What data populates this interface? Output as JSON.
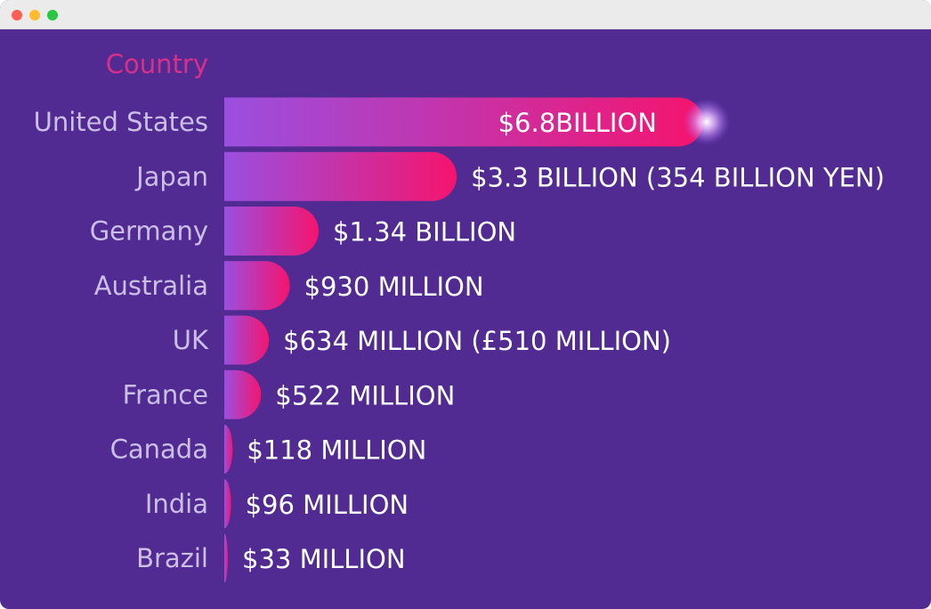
{
  "window": {
    "buttons": [
      {
        "name": "close",
        "color": "#ff5f57"
      },
      {
        "name": "minimize",
        "color": "#febc2e"
      },
      {
        "name": "zoom",
        "color": "#28c840"
      }
    ]
  },
  "colors": {
    "background": "#512b92",
    "header": "#d8308a",
    "category_label": "#cbbfe6",
    "value_label": "#ffffff",
    "bar_start": "#9a4fe0",
    "bar_end": "#f5146e",
    "glow": "#ffffff"
  },
  "chart_data": {
    "type": "bar",
    "orientation": "horizontal",
    "title": "",
    "category_header": "Country",
    "categories": [
      "United States",
      "Japan",
      "Germany",
      "Australia",
      "UK",
      "France",
      "Canada",
      "India",
      "Brazil"
    ],
    "values": [
      6.8,
      3.3,
      1.34,
      0.93,
      0.634,
      0.522,
      0.118,
      0.096,
      0.033
    ],
    "value_unit": "billion USD",
    "data_labels": [
      "$6.8BILLION",
      "$3.3 BILLION (354 BILLION YEN)",
      "$1.34 BILLION",
      "$930 MILLION",
      "$634 MILLION (£510 MILLION)",
      "$522 MILLION",
      "$118 MILLION",
      "$96 MILLION",
      "$33 MILLION"
    ],
    "xlim": [
      0,
      7
    ],
    "grid": false,
    "legend": "none"
  }
}
